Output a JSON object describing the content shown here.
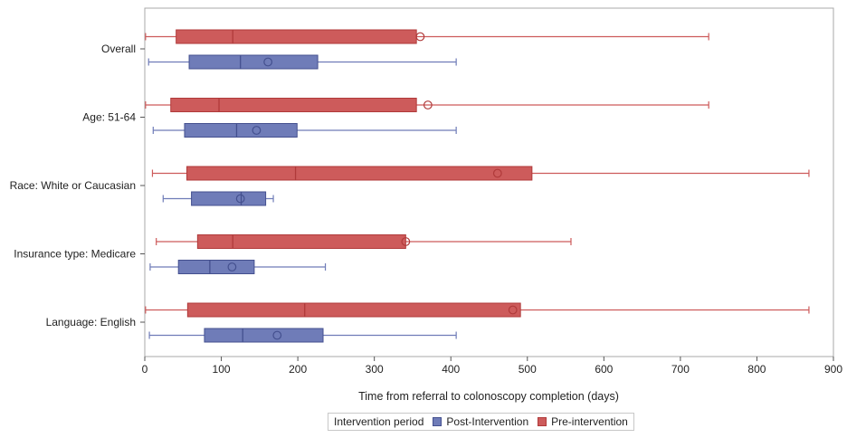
{
  "chart_data": {
    "type": "boxplot",
    "orientation": "horizontal",
    "xlabel": "Time from referral to colonoscopy completion (days)",
    "xlim": [
      0,
      900
    ],
    "xticks": [
      0,
      100,
      200,
      300,
      400,
      500,
      600,
      700,
      800,
      900
    ],
    "grid": false,
    "legend": {
      "title": "Intervention period",
      "placement": "bottom-center",
      "entries": [
        "Post-Intervention",
        "Pre-intervention"
      ]
    },
    "categories": [
      "Overall",
      "Age: 51-64",
      "Race: White or Caucasian",
      "Insurance type: Medicare",
      "Language: English"
    ],
    "series": [
      {
        "name": "Pre-intervention",
        "color": "#cd5b5b",
        "edge": "#b03a3a",
        "boxes": [
          {
            "min": 1,
            "q1": 41,
            "median": 115,
            "q3": 355,
            "max": 737,
            "mean": 360
          },
          {
            "min": 1,
            "q1": 34,
            "median": 97,
            "q3": 355,
            "max": 737,
            "mean": 370
          },
          {
            "min": 10,
            "q1": 55,
            "median": 197,
            "q3": 506,
            "max": 868,
            "mean": 461
          },
          {
            "min": 15,
            "q1": 69,
            "median": 115,
            "q3": 341,
            "max": 557,
            "mean": 341
          },
          {
            "min": 1,
            "q1": 56,
            "median": 209,
            "q3": 491,
            "max": 868,
            "mean": 481
          }
        ]
      },
      {
        "name": "Post-Intervention",
        "color": "#6f7cb8",
        "edge": "#44508f",
        "boxes": [
          {
            "min": 5,
            "q1": 58,
            "median": 125,
            "q3": 226,
            "max": 407,
            "mean": 161
          },
          {
            "min": 11,
            "q1": 52,
            "median": 120,
            "q3": 199,
            "max": 407,
            "mean": 146
          },
          {
            "min": 24,
            "q1": 61,
            "median": 126,
            "q3": 158,
            "max": 168,
            "mean": 125
          },
          {
            "min": 7,
            "q1": 44,
            "median": 85,
            "q3": 143,
            "max": 236,
            "mean": 114
          },
          {
            "min": 6,
            "q1": 78,
            "median": 128,
            "q3": 233,
            "max": 407,
            "mean": 173
          }
        ]
      }
    ]
  }
}
